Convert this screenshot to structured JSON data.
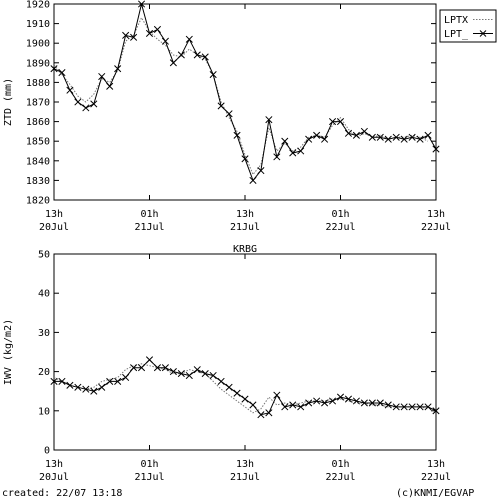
{
  "station": "KRBG",
  "footer": {
    "created": "created: 22/07 13:18",
    "credit": "(c)KNMI/EGVAP"
  },
  "colors": {
    "line": "#000000",
    "dotted": "#777777",
    "frame": "#000000"
  },
  "chart_data": [
    {
      "type": "line",
      "ylabel": "ZTD (mm)",
      "ylim": [
        1820,
        1920
      ],
      "yticks": [
        1820,
        1830,
        1840,
        1850,
        1860,
        1870,
        1880,
        1890,
        1900,
        1910,
        1920
      ],
      "xlim": [
        0,
        48
      ],
      "xticks": [
        {
          "x": 0,
          "line1": "13h",
          "line2": "20Jul"
        },
        {
          "x": 12,
          "line1": "01h",
          "line2": "21Jul"
        },
        {
          "x": 24,
          "line1": "13h",
          "line2": "21Jul"
        },
        {
          "x": 36,
          "line1": "01h",
          "line2": "22Jul"
        },
        {
          "x": 48,
          "line1": "13h",
          "line2": "22Jul"
        }
      ],
      "legend": {
        "position": "top-right"
      },
      "series": [
        {
          "name": "LPTX",
          "style": "dotted",
          "x": [
            0,
            1,
            2,
            3,
            4,
            5,
            6,
            7,
            8,
            9,
            10,
            11,
            12,
            13,
            14,
            15,
            16,
            17,
            18,
            19,
            20,
            21,
            22,
            23,
            24,
            25,
            26,
            27,
            28,
            29,
            30,
            31,
            32,
            33,
            34,
            35,
            36,
            37,
            38,
            39,
            40,
            41,
            42,
            43,
            44,
            45,
            46,
            47
          ],
          "y": [
            1889,
            1884,
            1879,
            1873,
            1870,
            1874,
            1882,
            1880,
            1886,
            1901,
            1904,
            1913,
            1906,
            1902,
            1899,
            1894,
            1893,
            1897,
            1894,
            1892,
            1884,
            1870,
            1862,
            1855,
            1843,
            1833,
            1838,
            1857,
            1845,
            1849,
            1845,
            1847,
            1852,
            1853,
            1852,
            1858,
            1862,
            1856,
            1852,
            1854,
            1852,
            1853,
            1851,
            1852,
            1852,
            1853,
            1852,
            1850
          ]
        },
        {
          "name": "LPT_",
          "style": "solid-x",
          "x": [
            0,
            1,
            2,
            3,
            4,
            5,
            6,
            7,
            8,
            9,
            10,
            11,
            12,
            13,
            14,
            15,
            16,
            17,
            18,
            19,
            20,
            21,
            22,
            23,
            24,
            25,
            26,
            27,
            28,
            29,
            30,
            31,
            32,
            33,
            34,
            35,
            36,
            37,
            38,
            39,
            40,
            41,
            42,
            43,
            44,
            45,
            46,
            47,
            48
          ],
          "y": [
            1887,
            1885,
            1876,
            1870,
            1867,
            1869,
            1883,
            1878,
            1887,
            1904,
            1903,
            1920,
            1905,
            1907,
            1901,
            1890,
            1894,
            1902,
            1894,
            1893,
            1884,
            1868,
            1864,
            1853,
            1841,
            1830,
            1835,
            1861,
            1842,
            1850,
            1844,
            1845,
            1851,
            1853,
            1851,
            1860,
            1860,
            1854,
            1853,
            1855,
            1852,
            1852,
            1851,
            1852,
            1851,
            1852,
            1851,
            1853,
            1846
          ]
        }
      ]
    },
    {
      "type": "line",
      "title": "KRBG",
      "ylabel": "IWV (kg/m2)",
      "ylim": [
        0,
        50
      ],
      "yticks": [
        0,
        10,
        20,
        30,
        40,
        50
      ],
      "xlim": [
        0,
        48
      ],
      "xticks": [
        {
          "x": 0,
          "line1": "13h",
          "line2": "20Jul"
        },
        {
          "x": 12,
          "line1": "01h",
          "line2": "21Jul"
        },
        {
          "x": 24,
          "line1": "13h",
          "line2": "21Jul"
        },
        {
          "x": 36,
          "line1": "01h",
          "line2": "22Jul"
        },
        {
          "x": 48,
          "line1": "13h",
          "line2": "22Jul"
        }
      ],
      "series": [
        {
          "name": "LPTX",
          "style": "dotted",
          "x": [
            0,
            1,
            2,
            3,
            4,
            5,
            6,
            7,
            8,
            9,
            10,
            11,
            12,
            13,
            14,
            15,
            16,
            17,
            18,
            19,
            20,
            21,
            22,
            23,
            24,
            25,
            26,
            27,
            28,
            29,
            30,
            31,
            32,
            33,
            34,
            35,
            36,
            37,
            38,
            39,
            40,
            41,
            42,
            43,
            44,
            45,
            46,
            47
          ],
          "y": [
            18.5,
            17.5,
            16.5,
            16.0,
            15.5,
            16.0,
            17.5,
            18.0,
            18.5,
            20.5,
            21.5,
            22.0,
            21.5,
            21.0,
            20.5,
            19.5,
            19.5,
            20.5,
            20.0,
            19.5,
            17.5,
            15.5,
            14.0,
            12.5,
            11.0,
            9.5,
            10.5,
            13.5,
            11.5,
            12.0,
            11.5,
            12.0,
            12.5,
            12.5,
            12.5,
            13.0,
            13.0,
            12.5,
            12.0,
            12.0,
            11.5,
            11.5,
            11.0,
            11.0,
            11.0,
            11.0,
            11.0,
            10.5
          ]
        },
        {
          "name": "LPT_",
          "style": "solid-x",
          "x": [
            0,
            1,
            2,
            3,
            4,
            5,
            6,
            7,
            8,
            9,
            10,
            11,
            12,
            13,
            14,
            15,
            16,
            17,
            18,
            19,
            20,
            21,
            22,
            23,
            24,
            25,
            26,
            27,
            28,
            29,
            30,
            31,
            32,
            33,
            34,
            35,
            36,
            37,
            38,
            39,
            40,
            41,
            42,
            43,
            44,
            45,
            46,
            47,
            48
          ],
          "y": [
            17.5,
            17.5,
            16.5,
            16.0,
            15.5,
            15.0,
            16.0,
            17.5,
            17.5,
            18.5,
            21.0,
            21.0,
            23.0,
            21.0,
            21.0,
            20.0,
            19.5,
            19.0,
            20.5,
            19.5,
            19.0,
            17.5,
            16.0,
            14.5,
            13.0,
            11.5,
            9.0,
            9.5,
            14.0,
            11.0,
            11.5,
            11.0,
            12.0,
            12.5,
            12.0,
            12.5,
            13.5,
            13.0,
            12.5,
            12.0,
            12.0,
            12.0,
            11.5,
            11.0,
            11.0,
            11.0,
            11.0,
            11.0,
            10.0
          ]
        }
      ]
    }
  ]
}
